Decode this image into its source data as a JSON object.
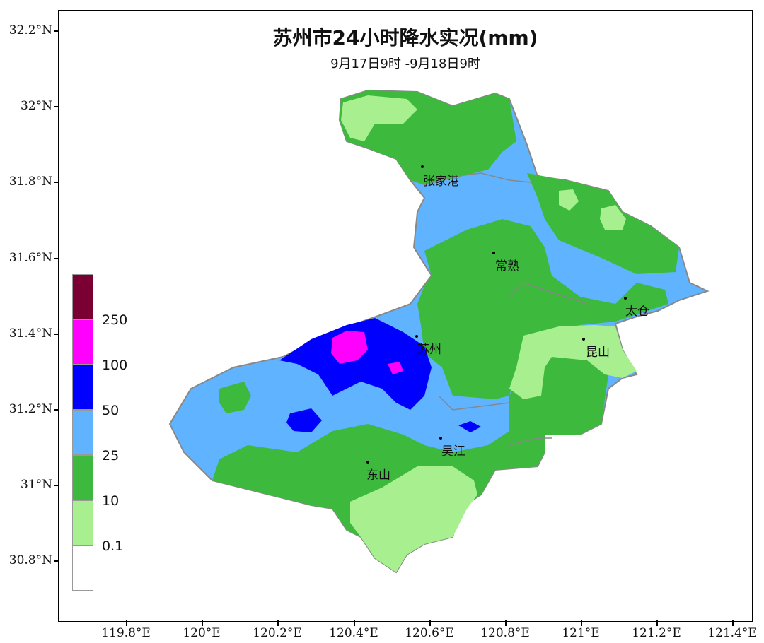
{
  "title": "苏州市24小时降水实况(mm)",
  "subtitle": "9月17日9时 -9月18日9时",
  "lat_labels": [
    "32.2°N",
    "32°N",
    "31.8°N",
    "31.6°N",
    "31.4°N",
    "31.2°N",
    "31°N",
    "30.8°N"
  ],
  "lon_labels": [
    "119.8°E",
    "120°E",
    "120.2°E",
    "120.4°E",
    "120.6°E",
    "120.8°E",
    "121°E",
    "121.2°E",
    "121.4°E"
  ],
  "legend": {
    "labels": [
      "250",
      "100",
      "50",
      "25",
      "10",
      "0.1"
    ],
    "colors": [
      "#7a0033",
      "#ff00ff",
      "#0000ff",
      "#5fb3ff",
      "#3dba3d",
      "#a8f08f",
      "#ffffff"
    ]
  },
  "cities": [
    "张家港",
    "常熟",
    "太仓",
    "苏州",
    "昆山",
    "吴江",
    "东山"
  ],
  "colors": {
    "light_green": "#a8f08f",
    "green": "#3dba3d",
    "light_blue": "#5fb3ff",
    "blue": "#0000ff",
    "magenta": "#ff00ff",
    "boundary": "#888888"
  }
}
